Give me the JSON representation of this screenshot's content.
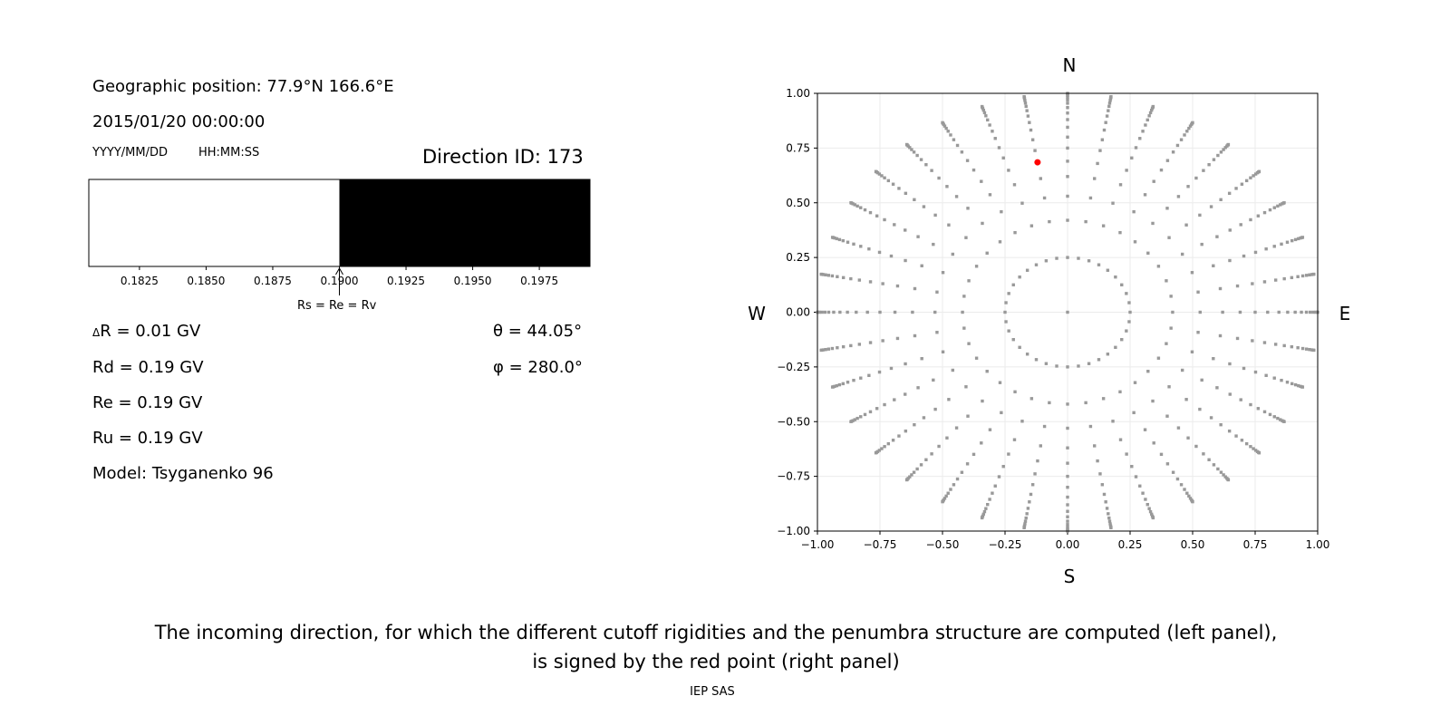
{
  "left_panel": {
    "position": "Geographic position: 77.9°N 166.6°E",
    "datetime": "2015/01/20 00:00:00",
    "date_format": "YYYY/MM/DD",
    "time_format": "HH:MM:SS",
    "direction_id": "Direction ID: 173",
    "arrow_label": "Rs = Re = Rv",
    "delta_r": "R = 0.01 GV",
    "delta_symbol": "Δ",
    "rd": "Rd = 0.19 GV",
    "re": "Re = 0.19 GV",
    "ru": "Ru = 0.19 GV",
    "model": "Model: Tsyganenko 96",
    "theta": "θ = 44.05°",
    "phi": "φ = 280.0°"
  },
  "chart_data": [
    {
      "type": "bar",
      "description_kind": "penumbra",
      "xlim": [
        0.1806,
        0.1994
      ],
      "xticks": [
        "0.1825",
        "0.1850",
        "0.1875",
        "0.1900",
        "0.1925",
        "0.1950",
        "0.1975"
      ],
      "xtick_values": [
        0.1825,
        0.185,
        0.1875,
        0.19,
        0.1925,
        0.195,
        0.1975
      ],
      "segments": [
        {
          "from": 0.1806,
          "to": 0.19,
          "color": "#ffffff"
        },
        {
          "from": 0.19,
          "to": 0.1994,
          "color": "#000000"
        }
      ],
      "arrow_at": 0.19
    },
    {
      "type": "scatter",
      "xlim": [
        -1,
        1
      ],
      "ylim": [
        -1,
        1
      ],
      "grid": true,
      "xticks": [
        "−1.00",
        "−0.75",
        "−0.50",
        "−0.25",
        "0.00",
        "0.25",
        "0.50",
        "0.75",
        "1.00"
      ],
      "yticks": [
        "−1.00",
        "−0.75",
        "−0.50",
        "−0.25",
        "0.00",
        "0.25",
        "0.50",
        "0.75",
        "1.00"
      ],
      "tick_values": [
        -1,
        -0.75,
        -0.5,
        -0.25,
        0,
        0.25,
        0.5,
        0.75,
        1
      ],
      "compass": {
        "n": "N",
        "s": "S",
        "w": "W",
        "e": "E"
      },
      "point_color": "#999999",
      "highlight_color": "#ff0000",
      "spoke_azimuth_step_deg": 10,
      "inner_circle_radius": 0.25,
      "spoke_radii": [
        0.42,
        0.53,
        0.62,
        0.69,
        0.75,
        0.8,
        0.845,
        0.88,
        0.91,
        0.935,
        0.955,
        0.97,
        0.982,
        0.991,
        0.997,
        1.0
      ],
      "highlight_point": {
        "x": -0.12,
        "y": 0.685
      }
    }
  ],
  "caption": {
    "line1": "The incoming direction, for which the different cutoff rigidities and the penumbra structure are computed (left panel),",
    "line2": "is signed by the red point (right panel)",
    "credit": "IEP SAS"
  }
}
